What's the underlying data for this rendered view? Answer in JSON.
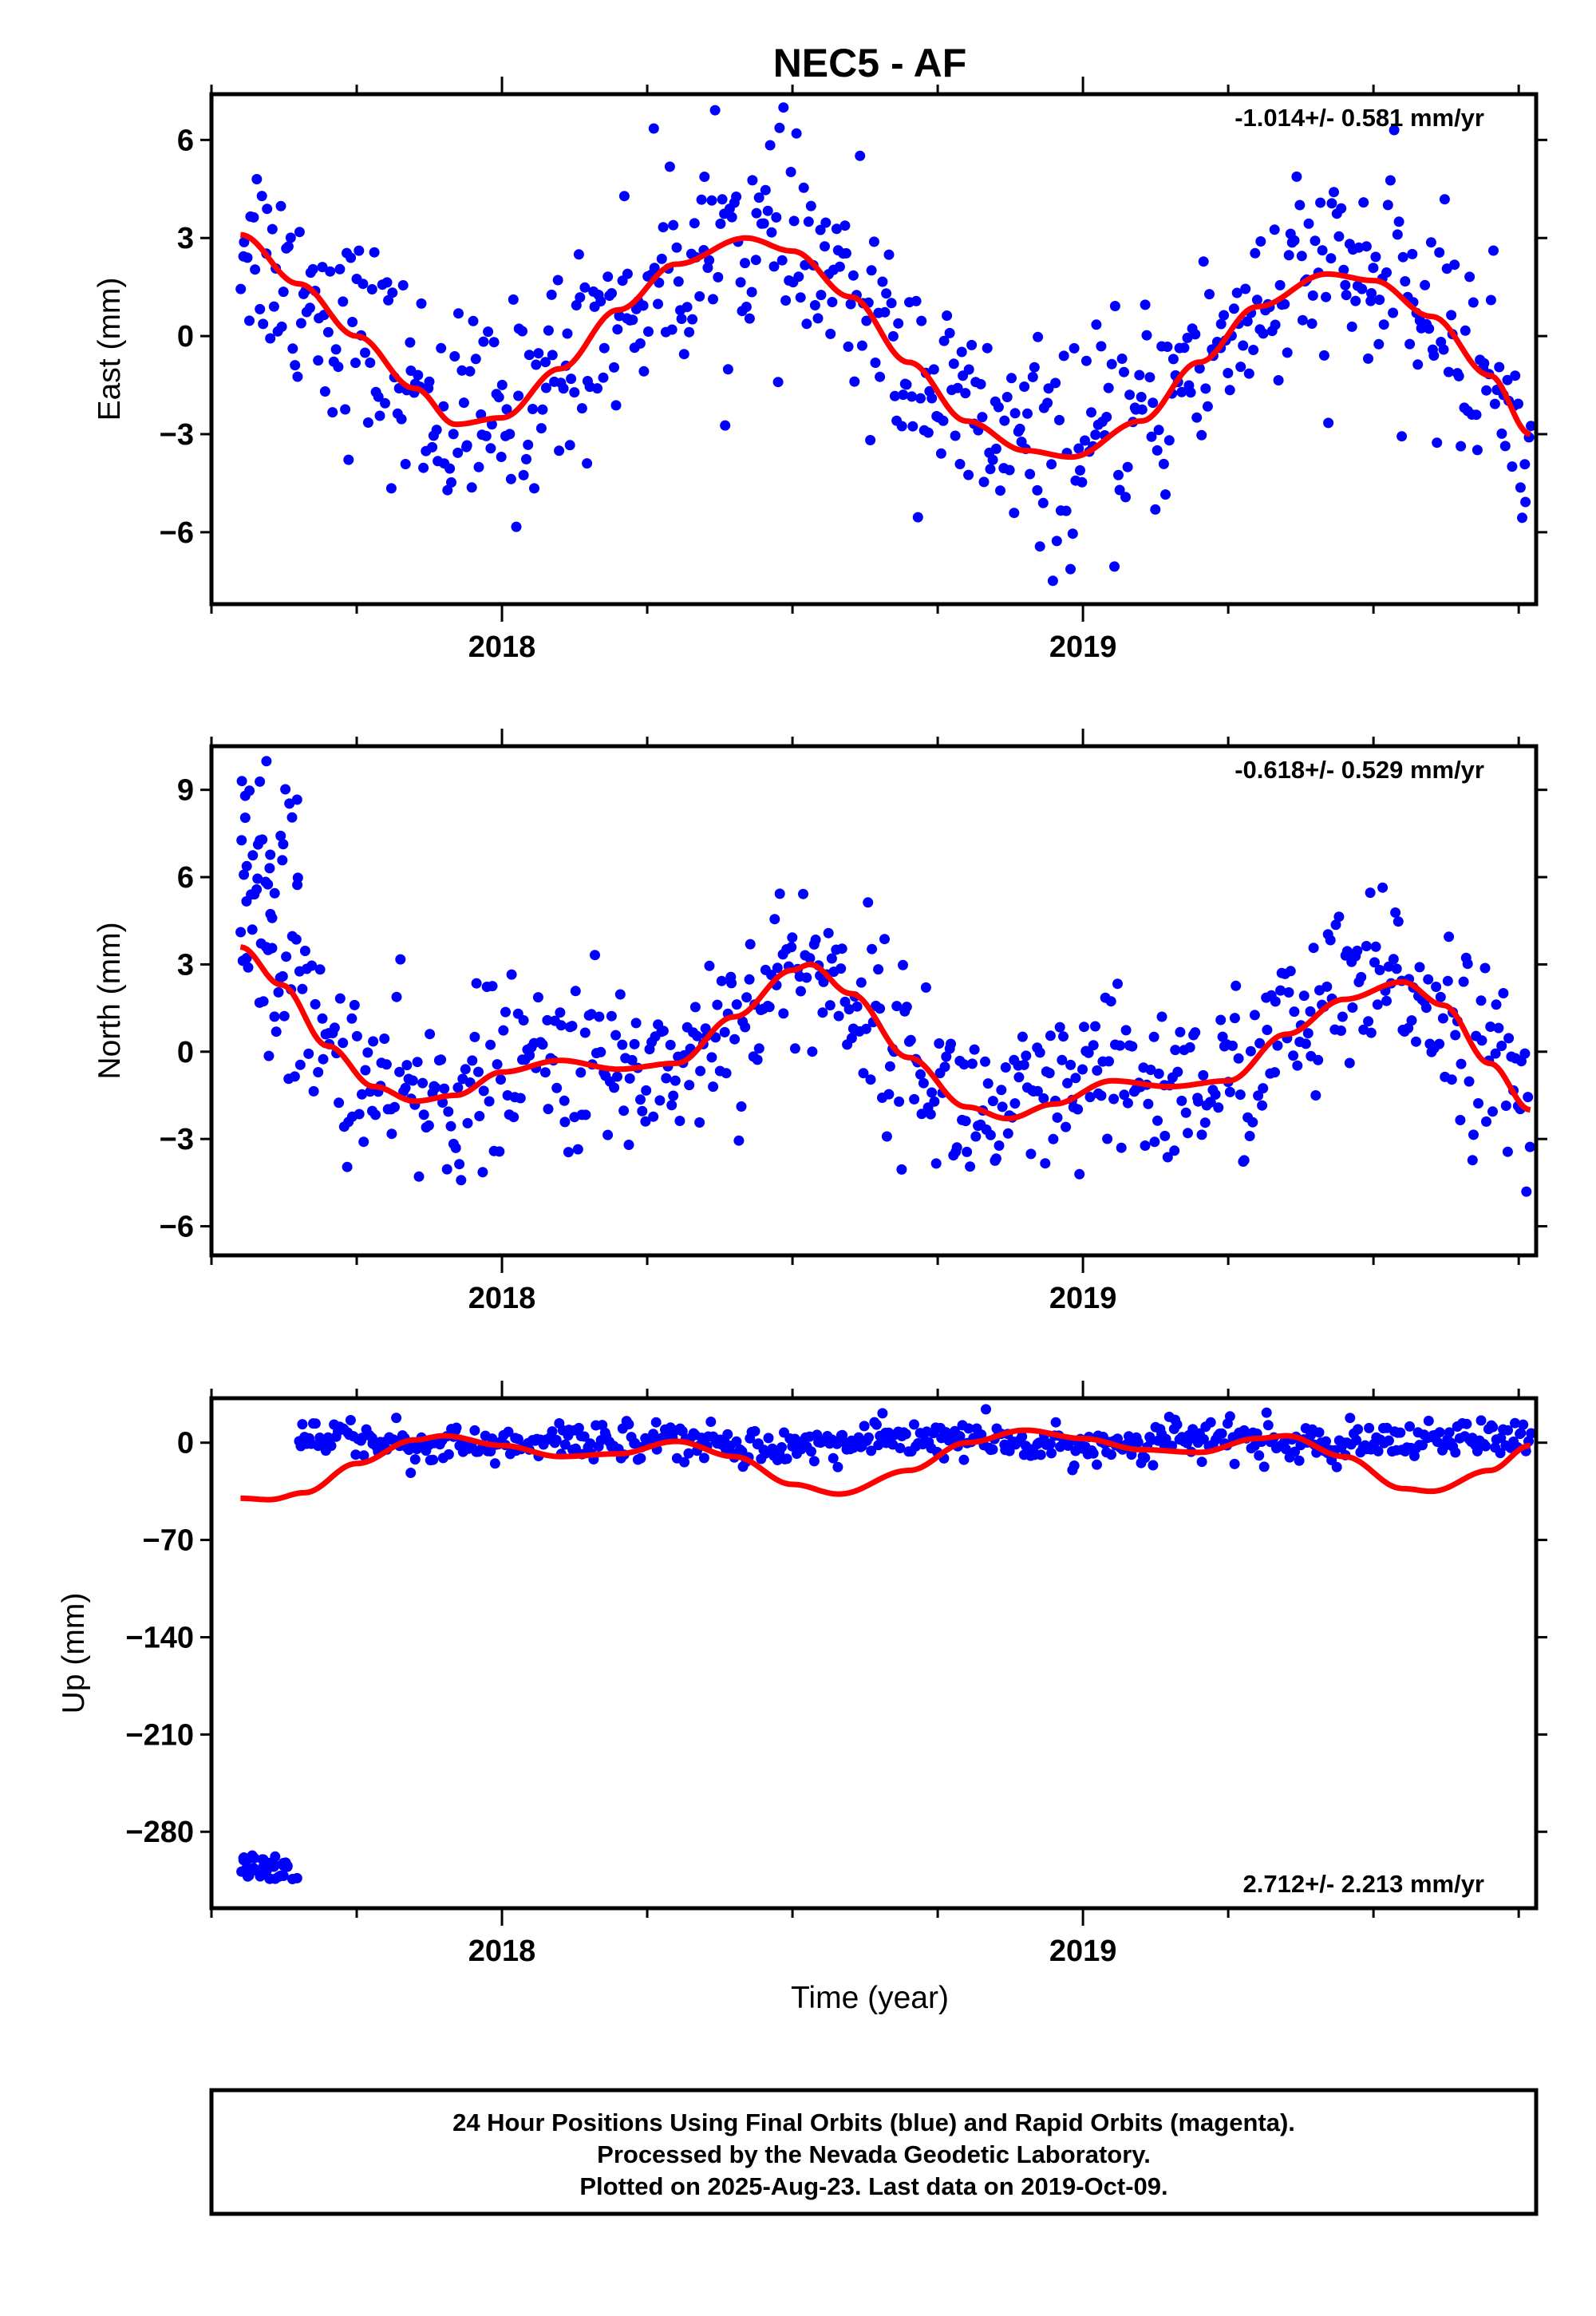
{
  "figure": {
    "title": "NEC5 - AF",
    "xlabel": "Time (year)",
    "footer_lines": [
      "24 Hour Positions Using Final Orbits (blue) and Rapid Orbits (magenta).",
      "Processed by the Nevada Geodetic Laboratory.",
      "Plotted on 2025-Aug-23. Last data on 2019-Oct-09."
    ],
    "colors": {
      "points": "#0000ff",
      "model": "#ff0000",
      "axes": "#000000"
    }
  },
  "chart_data": [
    {
      "type": "scatter",
      "ylabel": "East (mm)",
      "rate_label": "-1.014+/- 0.581 mm/yr",
      "rate_position": "top-right",
      "xlim": [
        2017.5,
        2019.78
      ],
      "ylim": [
        -8.2,
        7.4
      ],
      "yticks": [
        -6,
        -3,
        0,
        3,
        6
      ],
      "ytick_labels": [
        "−6",
        "−3",
        "0",
        "3",
        "6"
      ],
      "xticks": [
        2018,
        2019
      ],
      "xtick_labels": [
        "2018",
        "2019"
      ],
      "model_curve": {
        "x": [
          2017.55,
          2017.65,
          2017.75,
          2017.85,
          2017.92,
          2018.0,
          2018.1,
          2018.2,
          2018.3,
          2018.42,
          2018.5,
          2018.6,
          2018.7,
          2018.8,
          2018.9,
          2018.98,
          2019.1,
          2019.2,
          2019.3,
          2019.42,
          2019.5,
          2019.6,
          2019.7,
          2019.77
        ],
        "y": [
          3.1,
          1.6,
          0.0,
          -1.6,
          -2.7,
          -2.5,
          -1.0,
          0.8,
          2.2,
          3.0,
          2.6,
          1.2,
          -0.8,
          -2.6,
          -3.5,
          -3.7,
          -2.6,
          -0.8,
          0.9,
          1.9,
          1.7,
          0.6,
          -1.2,
          -3.0
        ]
      },
      "series": [
        {
          "x_start": 2017.55,
          "x_end": 2019.77,
          "n": 620,
          "trend": -1.014,
          "anchors_x": [
            2017.55,
            2017.65,
            2017.75,
            2017.85,
            2017.92,
            2018.0,
            2018.1,
            2018.2,
            2018.3,
            2018.42,
            2018.5,
            2018.6,
            2018.7,
            2018.8,
            2018.9,
            2018.98,
            2019.1,
            2019.2,
            2019.3,
            2019.42,
            2019.5,
            2019.6,
            2019.7,
            2019.77
          ],
          "anchors_y": [
            3.1,
            1.6,
            0.0,
            -1.6,
            -2.7,
            -2.5,
            -1.0,
            0.8,
            2.2,
            3.0,
            2.6,
            1.2,
            -0.8,
            -2.6,
            -3.5,
            -3.7,
            -2.6,
            -0.8,
            0.9,
            1.9,
            1.7,
            0.6,
            -1.2,
            -3.0
          ],
          "scatter_sd": 1.6
        }
      ]
    },
    {
      "type": "scatter",
      "ylabel": "North (mm)",
      "rate_label": "-0.618+/- 0.529 mm/yr",
      "rate_position": "top-right",
      "xlim": [
        2017.5,
        2019.78
      ],
      "ylim": [
        -7.0,
        10.5
      ],
      "yticks": [
        -6,
        -3,
        0,
        3,
        6,
        9
      ],
      "ytick_labels": [
        "−6",
        "−3",
        "0",
        "3",
        "6",
        "9"
      ],
      "xticks": [
        2018,
        2019
      ],
      "xtick_labels": [
        "2018",
        "2019"
      ],
      "model_curve": {
        "x": [
          2017.55,
          2017.62,
          2017.7,
          2017.78,
          2017.85,
          2017.92,
          2018.0,
          2018.1,
          2018.2,
          2018.3,
          2018.4,
          2018.5,
          2018.53,
          2018.6,
          2018.7,
          2018.8,
          2018.87,
          2018.95,
          2019.05,
          2019.15,
          2019.25,
          2019.35,
          2019.45,
          2019.55,
          2019.62,
          2019.7,
          2019.77
        ],
        "y": [
          3.6,
          2.3,
          0.2,
          -1.2,
          -1.7,
          -1.5,
          -0.7,
          -0.3,
          -0.6,
          -0.4,
          1.2,
          2.8,
          3.0,
          2.0,
          -0.2,
          -1.9,
          -2.3,
          -1.8,
          -1.0,
          -1.2,
          -1.0,
          0.6,
          1.8,
          2.4,
          1.6,
          -0.4,
          -2.0
        ]
      },
      "series": [
        {
          "x_start": 2017.55,
          "x_end": 2019.77,
          "n": 620,
          "trend": -0.618,
          "outliers_early": {
            "x_range": [
              2017.55,
              2017.65
            ],
            "y_range": [
              4.5,
              10.0
            ]
          },
          "anchors_x": [
            2017.55,
            2017.62,
            2017.7,
            2017.78,
            2017.85,
            2017.92,
            2018.0,
            2018.1,
            2018.2,
            2018.3,
            2018.4,
            2018.5,
            2018.53,
            2018.6,
            2018.7,
            2018.8,
            2018.87,
            2018.95,
            2019.05,
            2019.15,
            2019.25,
            2019.35,
            2019.45,
            2019.55,
            2019.62,
            2019.7,
            2019.77
          ],
          "anchors_y": [
            3.6,
            2.3,
            0.2,
            -1.2,
            -1.7,
            -1.5,
            -0.7,
            -0.3,
            -0.6,
            -0.4,
            1.2,
            2.8,
            3.0,
            2.0,
            -0.2,
            -1.9,
            -2.3,
            -1.8,
            -1.0,
            -1.2,
            -1.0,
            0.6,
            1.8,
            2.4,
            1.6,
            -0.4,
            -2.0
          ],
          "scatter_sd": 1.5
        }
      ]
    },
    {
      "type": "scatter",
      "ylabel": "Up (mm)",
      "rate_label": "2.712+/- 2.213 mm/yr",
      "rate_position": "bottom-right",
      "xlim": [
        2017.5,
        2019.78
      ],
      "ylim": [
        -335,
        32
      ],
      "yticks": [
        -280,
        -210,
        -140,
        -70,
        0
      ],
      "ytick_labels": [
        "−280",
        "−210",
        "−140",
        "−70",
        "0"
      ],
      "xticks": [
        2018,
        2019
      ],
      "xtick_labels": [
        "2018",
        "2019"
      ],
      "model_curve": {
        "x": [
          2017.55,
          2017.6,
          2017.66,
          2017.75,
          2017.85,
          2017.9,
          2018.0,
          2018.1,
          2018.2,
          2018.3,
          2018.4,
          2018.5,
          2018.58,
          2018.7,
          2018.8,
          2018.9,
          2019.0,
          2019.1,
          2019.2,
          2019.3,
          2019.35,
          2019.45,
          2019.55,
          2019.6,
          2019.7,
          2019.77
        ],
        "y": [
          -40,
          -41,
          -36,
          -15,
          2,
          5,
          -2,
          -10,
          -8,
          1,
          -10,
          -30,
          -37,
          -20,
          0,
          9,
          3,
          -5,
          -7,
          3,
          5,
          -10,
          -33,
          -35,
          -20,
          -2
        ]
      },
      "series": [
        {
          "x_start": 2017.65,
          "x_end": 2019.77,
          "n": 560,
          "trend": 2.712,
          "offset_cluster": {
            "x_range": [
              2017.55,
              2017.65
            ],
            "y_range": [
              -316,
              -296
            ]
          },
          "baseline": 0,
          "scatter_sd": 7
        }
      ]
    }
  ]
}
